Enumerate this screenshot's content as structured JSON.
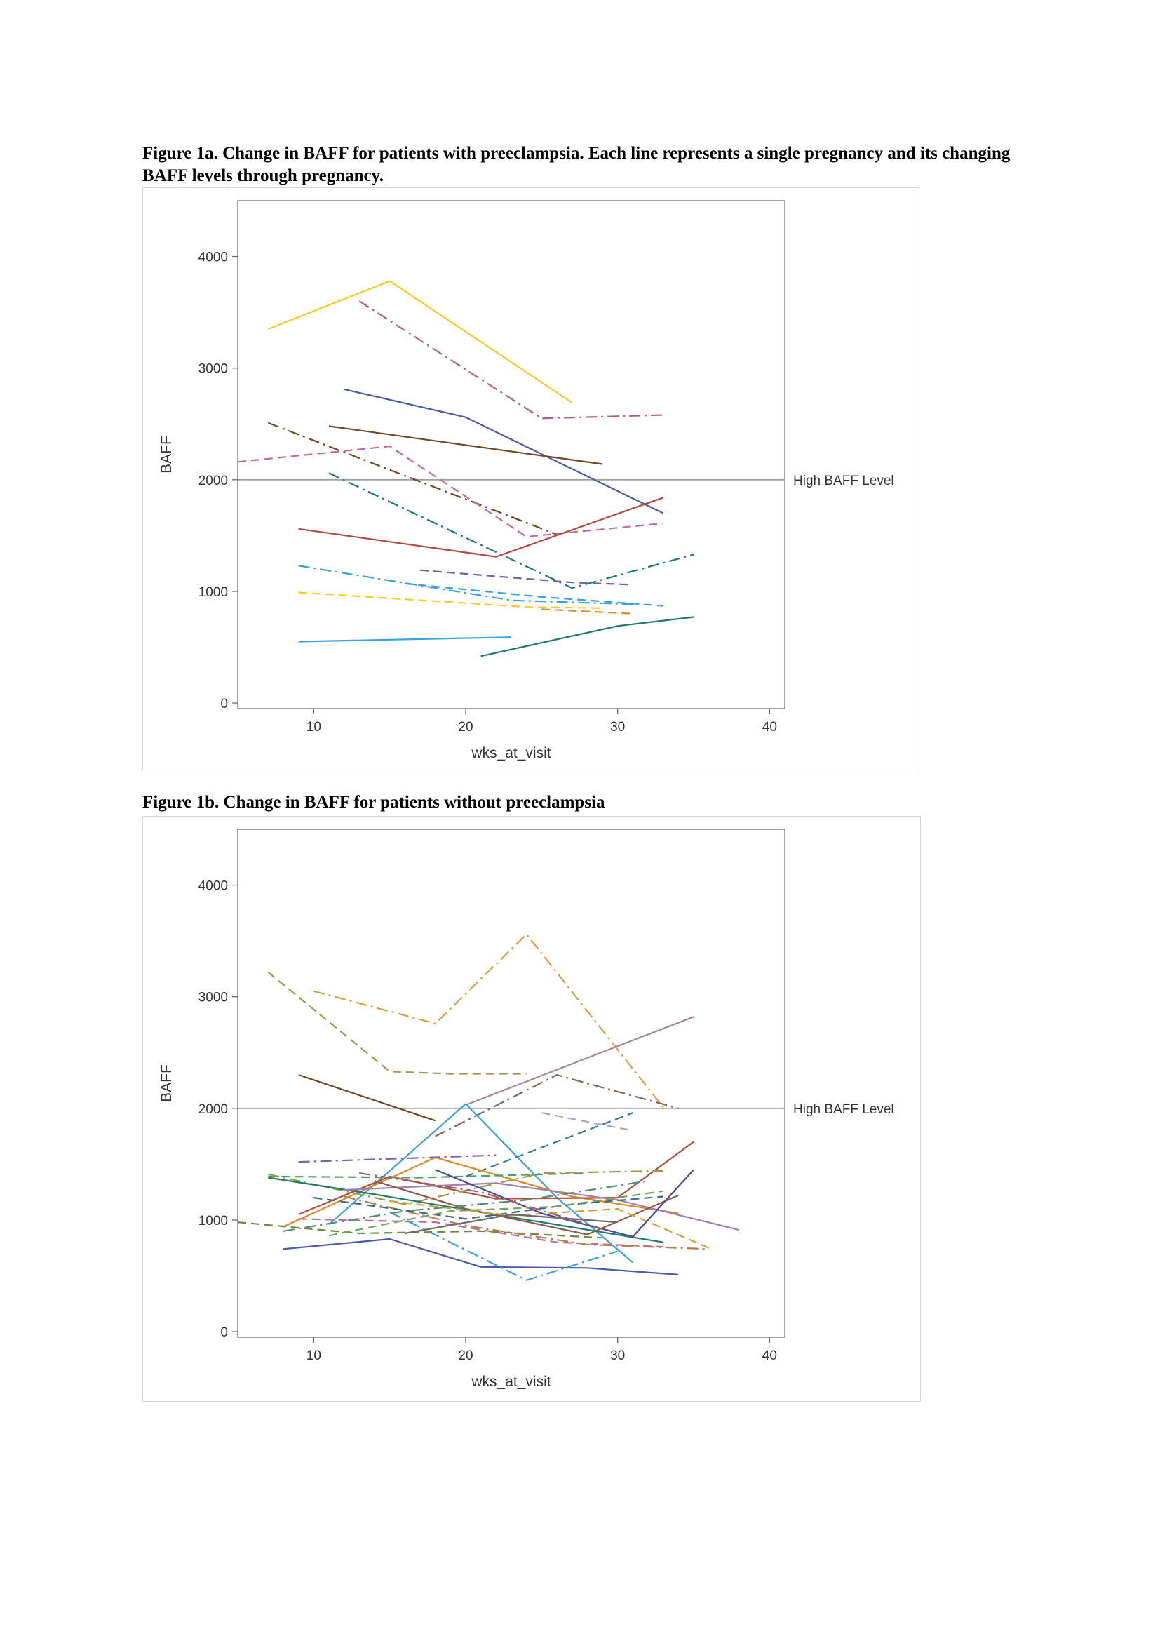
{
  "figures": [
    {
      "caption": "Figure 1a. Change in BAFF for patients with preeclampsia. Each line represents a single pregnancy and its changing BAFF levels through pregnancy."
    },
    {
      "caption": "Figure 1b. Change in BAFF for patients without preeclampsia"
    }
  ],
  "chart_data": [
    {
      "type": "line",
      "title": "Change in BAFF for patients with preeclampsia",
      "xlabel": "wks_at_visit",
      "ylabel": "BAFF",
      "xlim": [
        5,
        41
      ],
      "ylim": [
        -50,
        4500
      ],
      "xticks": [
        10,
        20,
        30,
        40
      ],
      "yticks": [
        0,
        1000,
        2000,
        3000,
        4000
      ],
      "reference_line": {
        "y": 2000,
        "label": "High BAFF Level",
        "color": "#a0a0a0"
      },
      "series": [
        {
          "color": "#f5cc1f",
          "dash": "solid",
          "points": [
            [
              7,
              3350
            ],
            [
              15,
              3780
            ],
            [
              27,
              2690
            ]
          ]
        },
        {
          "color": "#b06080",
          "dash": "dashdot",
          "points": [
            [
              13,
              3600
            ],
            [
              25,
              2550
            ],
            [
              33,
              2580
            ]
          ]
        },
        {
          "color": "#4a5aa8",
          "dash": "solid",
          "points": [
            [
              12,
              2810
            ],
            [
              20,
              2560
            ],
            [
              33,
              1700
            ]
          ]
        },
        {
          "color": "#6b4a28",
          "dash": "dashdot",
          "points": [
            [
              7,
              2510
            ],
            [
              26,
              1510
            ]
          ]
        },
        {
          "color": "#6b4a28",
          "dash": "solid",
          "points": [
            [
              11,
              2480
            ],
            [
              29,
              2140
            ]
          ]
        },
        {
          "color": "#c46a9a",
          "dash": "dash",
          "points": [
            [
              5,
              2160
            ],
            [
              15,
              2300
            ],
            [
              24,
              1490
            ],
            [
              33,
              1610
            ]
          ]
        },
        {
          "color": "#1e7a6e",
          "dash": "dashdot",
          "points": [
            [
              11,
              2060
            ],
            [
              27,
              1030
            ],
            [
              35,
              1330
            ]
          ]
        },
        {
          "color": "#b24a40",
          "dash": "solid",
          "points": [
            [
              9,
              1560
            ],
            [
              22,
              1310
            ],
            [
              33,
              1840
            ]
          ]
        },
        {
          "color": "#38a2e0",
          "dash": "dashdot",
          "points": [
            [
              9,
              1230
            ],
            [
              23,
              920
            ],
            [
              32,
              880
            ]
          ]
        },
        {
          "color": "#6a60b0",
          "dash": "dash",
          "points": [
            [
              17,
              1190
            ],
            [
              27,
              1080
            ],
            [
              31,
              1060
            ]
          ]
        },
        {
          "color": "#38a2e0",
          "dash": "dash",
          "points": [
            [
              16,
              1070
            ],
            [
              25,
              950
            ],
            [
              33,
              870
            ]
          ]
        },
        {
          "color": "#f5cc1f",
          "dash": "dash",
          "points": [
            [
              9,
              990
            ],
            [
              24,
              860
            ],
            [
              29,
              850
            ]
          ]
        },
        {
          "color": "#e08a20",
          "dash": "dash",
          "points": [
            [
              25,
              840
            ],
            [
              31,
              800
            ]
          ]
        },
        {
          "color": "#38a2e0",
          "dash": "solid",
          "points": [
            [
              9,
              550
            ],
            [
              23,
              590
            ]
          ]
        },
        {
          "color": "#1e7a6e",
          "dash": "solid",
          "points": [
            [
              21,
              420
            ],
            [
              30,
              690
            ],
            [
              35,
              770
            ]
          ]
        }
      ]
    },
    {
      "type": "line",
      "title": "Change in BAFF for patients without preeclampsia",
      "xlabel": "wks_at_visit",
      "ylabel": "BAFF",
      "xlim": [
        5,
        41
      ],
      "ylim": [
        -50,
        4500
      ],
      "xticks": [
        10,
        20,
        30,
        40
      ],
      "yticks": [
        0,
        1000,
        2000,
        3000,
        4000
      ],
      "reference_line": {
        "y": 2000,
        "label": "High BAFF Level",
        "color": "#a0a0a0"
      },
      "series": [
        {
          "color": "#d4a040",
          "dash": "dashdot",
          "points": [
            [
              10,
              3050
            ],
            [
              18,
              2760
            ],
            [
              24,
              3560
            ],
            [
              33,
              2010
            ]
          ]
        },
        {
          "color": "#9a9a48",
          "dash": "dash",
          "points": [
            [
              7,
              3220
            ],
            [
              15,
              2330
            ],
            [
              19,
              2310
            ],
            [
              24,
              2310
            ]
          ]
        },
        {
          "color": "#a88898",
          "dash": "solid",
          "points": [
            [
              20,
              2030
            ],
            [
              35,
              2820
            ]
          ]
        },
        {
          "color": "#6b4a28",
          "dash": "solid",
          "points": [
            [
              9,
              2300
            ],
            [
              18,
              1890
            ]
          ]
        },
        {
          "color": "#7a6a60",
          "dash": "dashdot",
          "points": [
            [
              18,
              1750
            ],
            [
              26,
              2300
            ],
            [
              34,
              2000
            ]
          ]
        },
        {
          "color": "#38a2e0",
          "dash": "solid",
          "points": [
            [
              11,
              960
            ],
            [
              20,
              2040
            ],
            [
              26,
              1200
            ],
            [
              31,
              620
            ]
          ]
        },
        {
          "color": "#b0a0d0",
          "dash": "dash",
          "points": [
            [
              25,
              1960
            ],
            [
              31,
              1800
            ]
          ]
        },
        {
          "color": "#3a7aa0",
          "dash": "dash",
          "points": [
            [
              20,
              1390
            ],
            [
              31,
              1960
            ]
          ]
        },
        {
          "color": "#e08a20",
          "dash": "solid",
          "points": [
            [
              8,
              940
            ],
            [
              18,
              1560
            ],
            [
              27,
              1210
            ],
            [
              34,
              1060
            ]
          ]
        },
        {
          "color": "#b05040",
          "dash": "solid",
          "points": [
            [
              9,
              1050
            ],
            [
              15,
              1390
            ],
            [
              22,
              1190
            ],
            [
              30,
              1200
            ],
            [
              35,
              1700
            ]
          ]
        },
        {
          "color": "#7a60b0",
          "dash": "dashdot",
          "points": [
            [
              9,
              1520
            ],
            [
              22,
              1580
            ]
          ]
        },
        {
          "color": "#4aa060",
          "dash": "dash",
          "points": [
            [
              7,
              1390
            ],
            [
              17,
              1380
            ],
            [
              28,
              1420
            ]
          ]
        },
        {
          "color": "#9a9a48",
          "dash": "dashdot",
          "points": [
            [
              7,
              1410
            ],
            [
              16,
              1140
            ],
            [
              25,
              1420
            ],
            [
              33,
              1440
            ]
          ]
        },
        {
          "color": "#1e7a6e",
          "dash": "solid",
          "points": [
            [
              7,
              1380
            ],
            [
              14,
              1230
            ],
            [
              21,
              1070
            ],
            [
              33,
              800
            ]
          ]
        },
        {
          "color": "#4a5aa8",
          "dash": "solid",
          "points": [
            [
              8,
              740
            ],
            [
              15,
              830
            ],
            [
              21,
              580
            ],
            [
              28,
              570
            ],
            [
              34,
              510
            ]
          ]
        },
        {
          "color": "#c46a9a",
          "dash": "dash",
          "points": [
            [
              9,
              1010
            ],
            [
              18,
              980
            ],
            [
              26,
              800
            ],
            [
              33,
              760
            ]
          ]
        },
        {
          "color": "#38a2e0",
          "dash": "dashdot",
          "points": [
            [
              15,
              1070
            ],
            [
              24,
              460
            ],
            [
              30,
              720
            ]
          ]
        },
        {
          "color": "#6a8a40",
          "dash": "dash",
          "points": [
            [
              5,
              980
            ],
            [
              13,
              880
            ],
            [
              21,
              900
            ],
            [
              29,
              840
            ]
          ]
        },
        {
          "color": "#b08050",
          "dash": "dashdot",
          "points": [
            [
              12,
              1210
            ],
            [
              20,
              950
            ],
            [
              28,
              780
            ],
            [
              36,
              740
            ]
          ]
        },
        {
          "color": "#a080b0",
          "dash": "solid",
          "points": [
            [
              12,
              1270
            ],
            [
              22,
              1330
            ],
            [
              30,
              1180
            ],
            [
              38,
              910
            ]
          ]
        },
        {
          "color": "#3a6a8a",
          "dash": "dash",
          "points": [
            [
              10,
              1200
            ],
            [
              20,
              1010
            ],
            [
              27,
              1140
            ],
            [
              33,
              1210
            ]
          ]
        },
        {
          "color": "#8a5a48",
          "dash": "solid",
          "points": [
            [
              14,
              1350
            ],
            [
              20,
              1100
            ],
            [
              28,
              870
            ],
            [
              34,
              1220
            ]
          ]
        },
        {
          "color": "#5a8a70",
          "dash": "dashdot",
          "points": [
            [
              8,
              900
            ],
            [
              16,
              1080
            ],
            [
              24,
              1180
            ],
            [
              32,
              1350
            ]
          ]
        },
        {
          "color": "#d0a030",
          "dash": "dash",
          "points": [
            [
              15,
              1170
            ],
            [
              23,
              1040
            ],
            [
              30,
              1100
            ],
            [
              36,
              750
            ]
          ]
        },
        {
          "color": "#4a4a98",
          "dash": "solid",
          "points": [
            [
              18,
              1450
            ],
            [
              25,
              1060
            ],
            [
              31,
              850
            ],
            [
              35,
              1450
            ]
          ]
        },
        {
          "color": "#7aa060",
          "dash": "dash",
          "points": [
            [
              11,
              860
            ],
            [
              19,
              1080
            ],
            [
              26,
              1120
            ],
            [
              33,
              1260
            ]
          ]
        },
        {
          "color": "#a05a70",
          "dash": "dashdot",
          "points": [
            [
              13,
              1420
            ],
            [
              21,
              1250
            ],
            [
              29,
              920
            ]
          ]
        },
        {
          "color": "#6a6a6a",
          "dash": "solid",
          "points": [
            [
              16,
              880
            ],
            [
              23,
              1050
            ],
            [
              30,
              980
            ]
          ]
        }
      ]
    }
  ]
}
